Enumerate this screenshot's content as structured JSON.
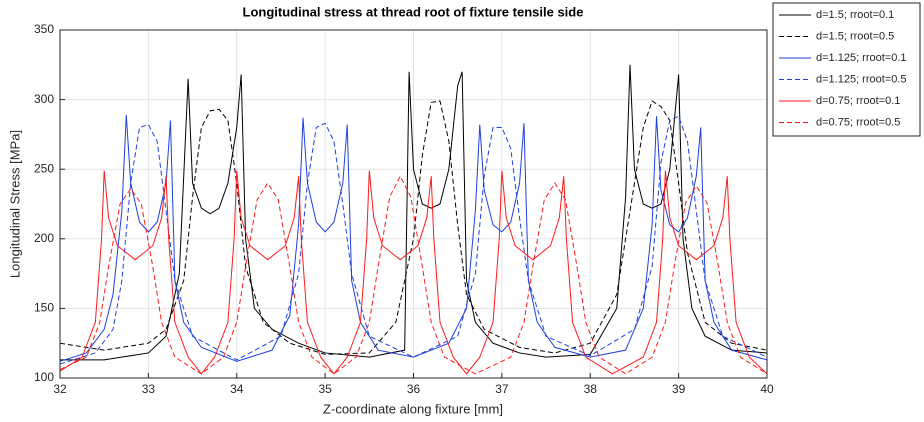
{
  "chart_data": {
    "type": "line",
    "title": "Longitudinal stress at thread root of fixture tensile side",
    "x_label": "Z-coordinate along fixture [mm]",
    "y_label": "Longitudinal Stress [MPa]",
    "xlim": [
      32,
      40
    ],
    "ylim": [
      100,
      350
    ],
    "xticks": [
      32,
      33,
      34,
      35,
      36,
      37,
      38,
      39,
      40
    ],
    "yticks": [
      100,
      150,
      200,
      250,
      300,
      350
    ],
    "grid": true,
    "legend": "outside-right",
    "series": [
      {
        "name": "d=1.5; rroot=0.1",
        "color": "#000000",
        "dashed": false,
        "x": [
          32,
          32.5,
          33,
          33.2,
          33.35,
          33.45,
          33.5,
          33.6,
          33.7,
          33.8,
          33.9,
          34.0,
          34.05,
          34.1,
          34.2,
          34.4,
          34.7,
          35,
          35.5,
          35.9,
          35.95,
          36.0,
          36.1,
          36.2,
          36.3,
          36.4,
          36.5,
          36.55,
          36.6,
          36.7,
          36.9,
          37.2,
          37.5,
          38,
          38.3,
          38.4,
          38.45,
          38.5,
          38.6,
          38.7,
          38.8,
          38.9,
          39.0,
          39.05,
          39.15,
          39.3,
          39.6,
          40
        ],
        "values": [
          113,
          113,
          118,
          130,
          175,
          315,
          240,
          222,
          218,
          222,
          240,
          280,
          318,
          200,
          150,
          135,
          125,
          118,
          115,
          120,
          320,
          250,
          225,
          222,
          225,
          250,
          310,
          320,
          170,
          140,
          125,
          118,
          115,
          117,
          150,
          230,
          325,
          250,
          225,
          222,
          225,
          250,
          318,
          200,
          150,
          130,
          120,
          118
        ]
      },
      {
        "name": "d=1.5; rroot=0.5",
        "color": "#000000",
        "dashed": true,
        "x": [
          32,
          32.5,
          33,
          33.2,
          33.4,
          33.5,
          33.6,
          33.7,
          33.8,
          33.9,
          34.0,
          34.1,
          34.3,
          34.6,
          35,
          35.5,
          35.8,
          36.0,
          36.1,
          36.2,
          36.3,
          36.4,
          36.5,
          36.6,
          36.8,
          37.2,
          37.6,
          38,
          38.3,
          38.5,
          38.6,
          38.7,
          38.8,
          38.9,
          39.0,
          39.1,
          39.3,
          39.6,
          40
        ],
        "values": [
          125,
          120,
          125,
          135,
          170,
          230,
          280,
          292,
          293,
          285,
          240,
          180,
          140,
          125,
          117,
          118,
          140,
          200,
          260,
          298,
          299,
          270,
          210,
          160,
          135,
          122,
          118,
          125,
          160,
          240,
          280,
          299,
          295,
          285,
          240,
          190,
          140,
          125,
          120
        ]
      },
      {
        "name": "d=1.125; rroot=0.1",
        "color": "#1f3fe0",
        "dashed": false,
        "x": [
          32,
          32.3,
          32.5,
          32.6,
          32.7,
          32.75,
          32.8,
          32.9,
          33.0,
          33.1,
          33.2,
          33.25,
          33.3,
          33.4,
          33.6,
          34,
          34.4,
          34.6,
          34.7,
          34.75,
          34.8,
          34.9,
          35.0,
          35.1,
          35.2,
          35.25,
          35.3,
          35.4,
          35.6,
          36,
          36.4,
          36.6,
          36.7,
          36.75,
          36.8,
          36.9,
          37.0,
          37.1,
          37.2,
          37.25,
          37.3,
          37.4,
          37.6,
          38,
          38.4,
          38.6,
          38.7,
          38.75,
          38.8,
          38.9,
          39.0,
          39.1,
          39.2,
          39.25,
          39.3,
          39.4,
          39.6,
          40
        ],
        "values": [
          112,
          118,
          135,
          160,
          220,
          289,
          240,
          212,
          205,
          212,
          240,
          285,
          170,
          140,
          122,
          112,
          120,
          145,
          210,
          287,
          240,
          212,
          205,
          212,
          240,
          282,
          170,
          140,
          120,
          115,
          125,
          150,
          220,
          282,
          235,
          210,
          205,
          212,
          240,
          283,
          170,
          140,
          122,
          115,
          120,
          150,
          210,
          288,
          235,
          210,
          205,
          215,
          245,
          280,
          170,
          140,
          120,
          113
        ]
      },
      {
        "name": "d=1.125; rroot=0.5",
        "color": "#1f3fe0",
        "dashed": true,
        "x": [
          32,
          32.4,
          32.6,
          32.7,
          32.8,
          32.9,
          33.0,
          33.1,
          33.2,
          33.3,
          33.5,
          34,
          34.5,
          34.7,
          34.8,
          34.9,
          35.0,
          35.1,
          35.2,
          35.3,
          35.5,
          36,
          36.5,
          36.7,
          36.8,
          36.9,
          37.0,
          37.1,
          37.2,
          37.3,
          37.5,
          38,
          38.5,
          38.7,
          38.8,
          38.9,
          39.0,
          39.1,
          39.2,
          39.3,
          39.5,
          40
        ],
        "values": [
          110,
          118,
          135,
          170,
          240,
          280,
          282,
          270,
          220,
          170,
          130,
          113,
          130,
          175,
          240,
          280,
          283,
          270,
          225,
          175,
          130,
          115,
          130,
          175,
          245,
          280,
          280,
          265,
          215,
          170,
          130,
          116,
          135,
          180,
          255,
          285,
          288,
          270,
          220,
          170,
          130,
          115
        ]
      },
      {
        "name": "d=0.75; rroot=0.1",
        "color": "#ff1a1a",
        "dashed": false,
        "x": [
          32,
          32.25,
          32.4,
          32.47,
          32.5,
          32.55,
          32.65,
          32.85,
          33.05,
          33.15,
          33.2,
          33.23,
          33.3,
          33.45,
          33.6,
          33.75,
          33.9,
          33.97,
          34.0,
          34.05,
          34.15,
          34.35,
          34.55,
          34.65,
          34.7,
          34.73,
          34.8,
          34.95,
          35.1,
          35.25,
          35.4,
          35.47,
          35.5,
          35.55,
          35.65,
          35.85,
          36.05,
          36.15,
          36.2,
          36.23,
          36.3,
          36.45,
          36.6,
          36.75,
          36.9,
          36.97,
          37.0,
          37.05,
          37.15,
          37.35,
          37.55,
          37.65,
          37.7,
          37.73,
          37.8,
          37.95,
          38.25,
          38.6,
          38.75,
          38.82,
          38.85,
          38.9,
          39.0,
          39.2,
          39.4,
          39.5,
          39.55,
          39.58,
          39.65,
          39.8,
          40
        ],
        "values": [
          105,
          115,
          140,
          200,
          249,
          215,
          195,
          185,
          195,
          215,
          245,
          200,
          140,
          115,
          103,
          115,
          140,
          200,
          249,
          215,
          195,
          185,
          195,
          215,
          245,
          200,
          140,
          115,
          103,
          115,
          140,
          200,
          249,
          215,
          195,
          185,
          195,
          215,
          245,
          200,
          140,
          115,
          103,
          115,
          140,
          200,
          249,
          215,
          195,
          185,
          195,
          215,
          245,
          200,
          140,
          115,
          103,
          115,
          140,
          200,
          249,
          215,
          195,
          185,
          195,
          215,
          245,
          200,
          140,
          115,
          103
        ]
      },
      {
        "name": "d=0.75; rroot=0.5",
        "color": "#ff1a1a",
        "dashed": true,
        "x": [
          32,
          32.3,
          32.45,
          32.55,
          32.68,
          32.8,
          32.92,
          33.05,
          33.15,
          33.3,
          33.6,
          33.85,
          34.0,
          34.1,
          34.23,
          34.35,
          34.47,
          34.6,
          34.7,
          34.85,
          35.1,
          35.35,
          35.5,
          35.6,
          35.73,
          35.85,
          35.97,
          36.1,
          36.2,
          36.35,
          36.7,
          37.1,
          37.25,
          37.35,
          37.48,
          37.6,
          37.72,
          37.85,
          37.95,
          38.1,
          38.4,
          38.7,
          38.85,
          38.95,
          39.08,
          39.2,
          39.32,
          39.45,
          39.55,
          39.7,
          40
        ],
        "values": [
          106,
          115,
          140,
          180,
          225,
          236,
          225,
          180,
          140,
          115,
          103,
          115,
          140,
          180,
          228,
          240,
          228,
          180,
          140,
          115,
          103,
          115,
          140,
          180,
          230,
          245,
          230,
          180,
          140,
          115,
          103,
          115,
          140,
          180,
          228,
          240,
          228,
          180,
          140,
          115,
          103,
          115,
          140,
          180,
          226,
          238,
          226,
          180,
          140,
          115,
          103
        ]
      }
    ]
  }
}
